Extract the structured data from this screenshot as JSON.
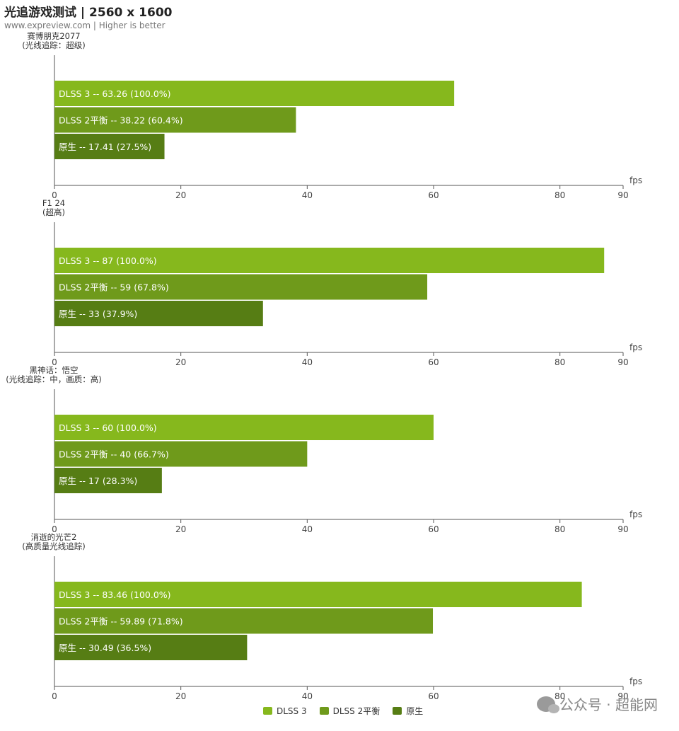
{
  "header": {
    "title": "光追游戏测试 | 2560 x 1600",
    "subtitle": "www.expreview.com | Higher is better"
  },
  "colors": {
    "DLSS 3": "#86b81d",
    "DLSS 2平衡": "#6f9a1b",
    "原生": "#567d14"
  },
  "chart_data": [
    {
      "type": "bar",
      "orientation": "horizontal",
      "category_label": [
        "赛博朋克2077",
        "(光线追踪：超级)"
      ],
      "xlabel": "fps",
      "xlim": [
        0,
        90
      ],
      "xticks": [
        0,
        20,
        40,
        60,
        80,
        90
      ],
      "series": [
        {
          "name": "DLSS 3",
          "value": 63.26,
          "label": "DLSS 3  --  63.26 (100.0%)"
        },
        {
          "name": "DLSS 2平衡",
          "value": 38.22,
          "label": "DLSS 2平衡  --  38.22 (60.4%)"
        },
        {
          "name": "原生",
          "value": 17.41,
          "label": "原生  --  17.41 (27.5%)"
        }
      ]
    },
    {
      "type": "bar",
      "orientation": "horizontal",
      "category_label": [
        "F1 24",
        "(超高)"
      ],
      "xlabel": "fps",
      "xlim": [
        0,
        90
      ],
      "xticks": [
        0,
        20,
        40,
        60,
        80,
        90
      ],
      "series": [
        {
          "name": "DLSS 3",
          "value": 87,
          "label": "DLSS 3  --  87 (100.0%)"
        },
        {
          "name": "DLSS 2平衡",
          "value": 59,
          "label": "DLSS 2平衡  --  59 (67.8%)"
        },
        {
          "name": "原生",
          "value": 33,
          "label": "原生  --  33 (37.9%)"
        }
      ]
    },
    {
      "type": "bar",
      "orientation": "horizontal",
      "category_label": [
        "黑神话：悟空",
        "(光线追踪：中，画质：高)"
      ],
      "xlabel": "fps",
      "xlim": [
        0,
        90
      ],
      "xticks": [
        0,
        20,
        40,
        60,
        80,
        90
      ],
      "series": [
        {
          "name": "DLSS 3",
          "value": 60,
          "label": "DLSS 3  --  60 (100.0%)"
        },
        {
          "name": "DLSS 2平衡",
          "value": 40,
          "label": "DLSS 2平衡  --  40 (66.7%)"
        },
        {
          "name": "原生",
          "value": 17,
          "label": "原生  --  17 (28.3%)"
        }
      ]
    },
    {
      "type": "bar",
      "orientation": "horizontal",
      "category_label": [
        "消逝的光芒2",
        "(高质量光线追踪)"
      ],
      "xlabel": "fps",
      "xlim": [
        0,
        90
      ],
      "xticks": [
        0,
        20,
        40,
        60,
        80,
        90
      ],
      "series": [
        {
          "name": "DLSS 3",
          "value": 83.46,
          "label": "DLSS 3  --  83.46 (100.0%)"
        },
        {
          "name": "DLSS 2平衡",
          "value": 59.89,
          "label": "DLSS 2平衡  --  59.89 (71.8%)"
        },
        {
          "name": "原生",
          "value": 30.49,
          "label": "原生  --  30.49 (36.5%)"
        }
      ]
    }
  ],
  "legend": {
    "placement": "bottom-center",
    "items": [
      "DLSS 3",
      "DLSS 2平衡",
      "原生"
    ]
  },
  "watermark": {
    "text": "公众号 · 超能网",
    "icon": "wechat-icon"
  }
}
